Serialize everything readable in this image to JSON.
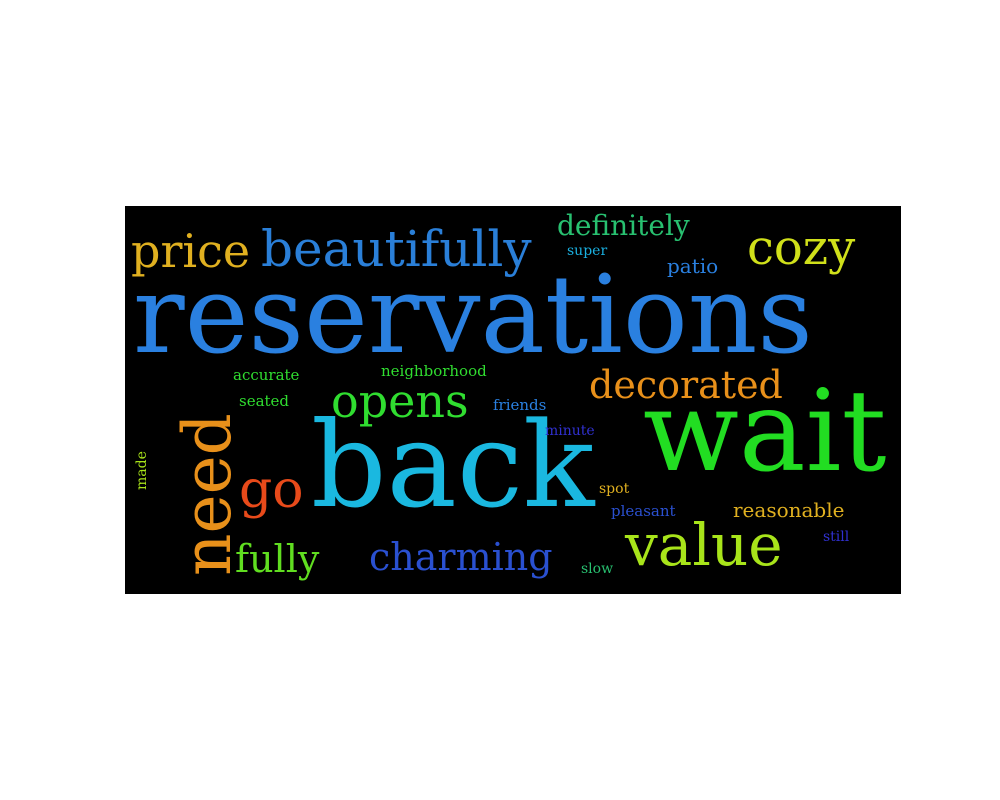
{
  "words": {
    "reservations": {
      "text": "reservations",
      "color": "#2a80e0"
    },
    "wait": {
      "text": "wait",
      "color": "#22dd22"
    },
    "back": {
      "text": "back",
      "color": "#1ab8e0"
    },
    "need": {
      "text": "need",
      "color": "#e8901a"
    },
    "beautifully": {
      "text": "beautifully",
      "color": "#2a7fd8"
    },
    "value": {
      "text": "value",
      "color": "#a8e41a"
    },
    "price": {
      "text": "price",
      "color": "#e0b020"
    },
    "cozy": {
      "text": "cozy",
      "color": "#d0e01a"
    },
    "decorated": {
      "text": "decorated",
      "color": "#e8901a"
    },
    "opens": {
      "text": "opens",
      "color": "#30dd30"
    },
    "charming": {
      "text": "charming",
      "color": "#2a50d0"
    },
    "go": {
      "text": "go",
      "color": "#e84a1a"
    },
    "fully": {
      "text": "fully",
      "color": "#60dd20"
    },
    "definitely": {
      "text": "definitely",
      "color": "#28c070"
    },
    "patio": {
      "text": "patio",
      "color": "#2a80e0"
    },
    "super": {
      "text": "super",
      "color": "#1ab0e0"
    },
    "accurate": {
      "text": "accurate",
      "color": "#30dd30"
    },
    "seated": {
      "text": "seated",
      "color": "#30dd30"
    },
    "neighborhood": {
      "text": "neighborhood",
      "color": "#30dd30"
    },
    "friends": {
      "text": "friends",
      "color": "#2a80e0"
    },
    "minute": {
      "text": "minute",
      "color": "#3030d0"
    },
    "made": {
      "text": "made",
      "color": "#a8e41a"
    },
    "spot": {
      "text": "spot",
      "color": "#e0b020"
    },
    "pleasant": {
      "text": "pleasant",
      "color": "#2a50d0"
    },
    "reasonable": {
      "text": "reasonable",
      "color": "#e0b020"
    },
    "still": {
      "text": "still",
      "color": "#3030d0"
    },
    "slow": {
      "text": "slow",
      "color": "#28c070"
    }
  }
}
